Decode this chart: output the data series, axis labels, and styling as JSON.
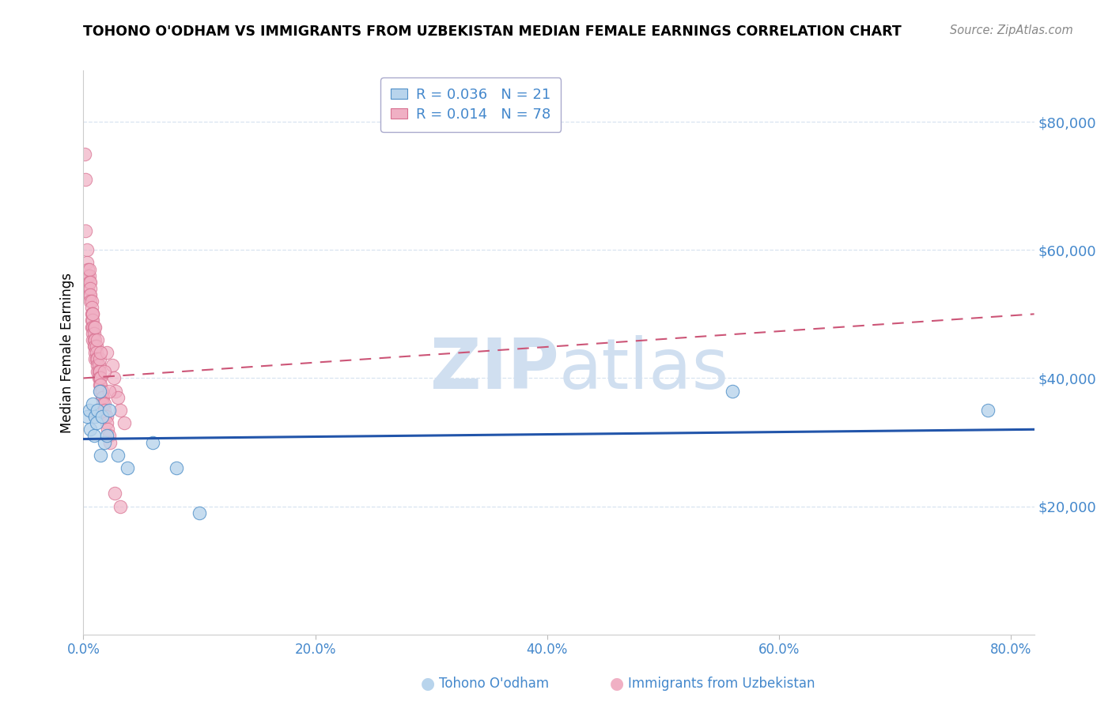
{
  "title": "TOHONO O'ODHAM VS IMMIGRANTS FROM UZBEKISTAN MEDIAN FEMALE EARNINGS CORRELATION CHART",
  "source": "Source: ZipAtlas.com",
  "ylabel": "Median Female Earnings",
  "ylim": [
    0,
    88000
  ],
  "xlim": [
    0.0,
    0.82
  ],
  "xticks": [
    0.0,
    0.2,
    0.4,
    0.6,
    0.8
  ],
  "xtick_labels": [
    "0.0%",
    "20.0%",
    "40.0%",
    "60.0%",
    "80.0%"
  ],
  "yticks": [
    20000,
    40000,
    60000,
    80000
  ],
  "ytick_labels": [
    "$20,000",
    "$40,000",
    "$60,000",
    "$80,000"
  ],
  "blue_face": "#b8d4ec",
  "blue_edge": "#5090c8",
  "pink_face": "#f0b0c4",
  "pink_edge": "#d87090",
  "blue_trendline": "#2255aa",
  "pink_trendline": "#cc5577",
  "axis_tick_color": "#4488cc",
  "grid_color": "#d8e4f0",
  "watermark_color": "#d0dff0",
  "legend_r_blue": "0.036",
  "legend_n_blue": "21",
  "legend_r_pink": "0.014",
  "legend_n_pink": "78",
  "legend_blue_label": "Tohono O'odham",
  "legend_pink_label": "Immigrants from Uzbekistan",
  "blue_x": [
    0.003,
    0.005,
    0.006,
    0.008,
    0.009,
    0.01,
    0.011,
    0.012,
    0.014,
    0.015,
    0.016,
    0.018,
    0.02,
    0.022,
    0.03,
    0.038,
    0.06,
    0.08,
    0.1,
    0.56,
    0.78
  ],
  "blue_y": [
    34000,
    35000,
    32000,
    36000,
    31000,
    34000,
    33000,
    35000,
    38000,
    28000,
    34000,
    30000,
    31000,
    35000,
    28000,
    26000,
    30000,
    26000,
    19000,
    38000,
    35000
  ],
  "pink_x": [
    0.001,
    0.002,
    0.002,
    0.003,
    0.003,
    0.003,
    0.004,
    0.004,
    0.004,
    0.005,
    0.005,
    0.005,
    0.005,
    0.006,
    0.006,
    0.006,
    0.006,
    0.007,
    0.007,
    0.007,
    0.007,
    0.007,
    0.008,
    0.008,
    0.008,
    0.008,
    0.008,
    0.009,
    0.009,
    0.009,
    0.009,
    0.01,
    0.01,
    0.01,
    0.01,
    0.011,
    0.011,
    0.011,
    0.012,
    0.012,
    0.012,
    0.013,
    0.013,
    0.013,
    0.014,
    0.014,
    0.014,
    0.015,
    0.015,
    0.015,
    0.016,
    0.016,
    0.017,
    0.017,
    0.018,
    0.018,
    0.019,
    0.02,
    0.02,
    0.021,
    0.022,
    0.023,
    0.025,
    0.026,
    0.028,
    0.03,
    0.032,
    0.035,
    0.014,
    0.02,
    0.008,
    0.01,
    0.012,
    0.015,
    0.018,
    0.022,
    0.027,
    0.032
  ],
  "pink_y": [
    75000,
    71000,
    63000,
    60000,
    58000,
    56000,
    56000,
    54000,
    57000,
    56000,
    55000,
    53000,
    57000,
    55000,
    54000,
    53000,
    52000,
    52000,
    51000,
    50000,
    49000,
    48000,
    50000,
    49000,
    48000,
    47000,
    46000,
    48000,
    47000,
    46000,
    45000,
    46000,
    45000,
    44000,
    43000,
    45000,
    44000,
    43000,
    43000,
    42000,
    41000,
    42000,
    41000,
    40000,
    41000,
    40000,
    39000,
    40000,
    39000,
    38000,
    38000,
    37000,
    37000,
    36000,
    36000,
    35000,
    34000,
    34000,
    33000,
    32000,
    31000,
    30000,
    42000,
    40000,
    38000,
    37000,
    35000,
    33000,
    43000,
    44000,
    50000,
    48000,
    46000,
    44000,
    41000,
    38000,
    22000,
    20000
  ],
  "pink_trendline_x0": 0.0,
  "pink_trendline_y0": 40000,
  "pink_trendline_x1": 0.82,
  "pink_trendline_y1": 50000,
  "blue_trendline_x0": 0.0,
  "blue_trendline_y0": 30500,
  "blue_trendline_x1": 0.82,
  "blue_trendline_y1": 32000
}
